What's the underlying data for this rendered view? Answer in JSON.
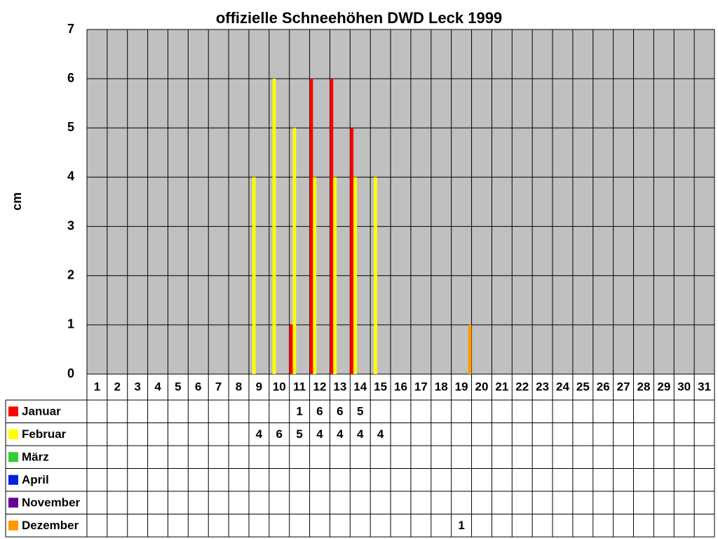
{
  "chart_data": {
    "type": "bar",
    "title": "offizielle Schneehöhen DWD Leck 1999",
    "y_label": "cm",
    "categories": [
      "1",
      "2",
      "3",
      "4",
      "5",
      "6",
      "7",
      "8",
      "9",
      "10",
      "11",
      "12",
      "13",
      "14",
      "15",
      "16",
      "17",
      "18",
      "19",
      "20",
      "21",
      "22",
      "23",
      "24",
      "25",
      "26",
      "27",
      "28",
      "29",
      "30",
      "31"
    ],
    "series": [
      {
        "name": "Januar",
        "color": "#ff0000",
        "values": [
          null,
          null,
          null,
          null,
          null,
          null,
          null,
          null,
          null,
          null,
          1,
          6,
          6,
          5,
          null,
          null,
          null,
          null,
          null,
          null,
          null,
          null,
          null,
          null,
          null,
          null,
          null,
          null,
          null,
          null,
          null
        ]
      },
      {
        "name": "Februar",
        "color": "#ffff00",
        "values": [
          null,
          null,
          null,
          null,
          null,
          null,
          null,
          null,
          4,
          6,
          5,
          4,
          4,
          4,
          4,
          null,
          null,
          null,
          null,
          null,
          null,
          null,
          null,
          null,
          null,
          null,
          null,
          null,
          null,
          null,
          null
        ]
      },
      {
        "name": "März",
        "color": "#33cc33",
        "values": [
          null,
          null,
          null,
          null,
          null,
          null,
          null,
          null,
          null,
          null,
          null,
          null,
          null,
          null,
          null,
          null,
          null,
          null,
          null,
          null,
          null,
          null,
          null,
          null,
          null,
          null,
          null,
          null,
          null,
          null,
          null
        ]
      },
      {
        "name": "April",
        "color": "#0022dd",
        "values": [
          null,
          null,
          null,
          null,
          null,
          null,
          null,
          null,
          null,
          null,
          null,
          null,
          null,
          null,
          null,
          null,
          null,
          null,
          null,
          null,
          null,
          null,
          null,
          null,
          null,
          null,
          null,
          null,
          null,
          null,
          null
        ]
      },
      {
        "name": "November",
        "color": "#660099",
        "values": [
          null,
          null,
          null,
          null,
          null,
          null,
          null,
          null,
          null,
          null,
          null,
          null,
          null,
          null,
          null,
          null,
          null,
          null,
          null,
          null,
          null,
          null,
          null,
          null,
          null,
          null,
          null,
          null,
          null,
          null,
          null
        ]
      },
      {
        "name": "Dezember",
        "color": "#ff9900",
        "values": [
          null,
          null,
          null,
          null,
          null,
          null,
          null,
          null,
          null,
          null,
          null,
          null,
          null,
          null,
          null,
          null,
          null,
          null,
          1,
          null,
          null,
          null,
          null,
          null,
          null,
          null,
          null,
          null,
          null,
          null,
          null
        ]
      }
    ],
    "ylim": [
      0,
      7
    ],
    "yticks": [
      0,
      1,
      2,
      3,
      4,
      5,
      6,
      7
    ],
    "grid": true,
    "plot_background": "#c0c0c0"
  }
}
